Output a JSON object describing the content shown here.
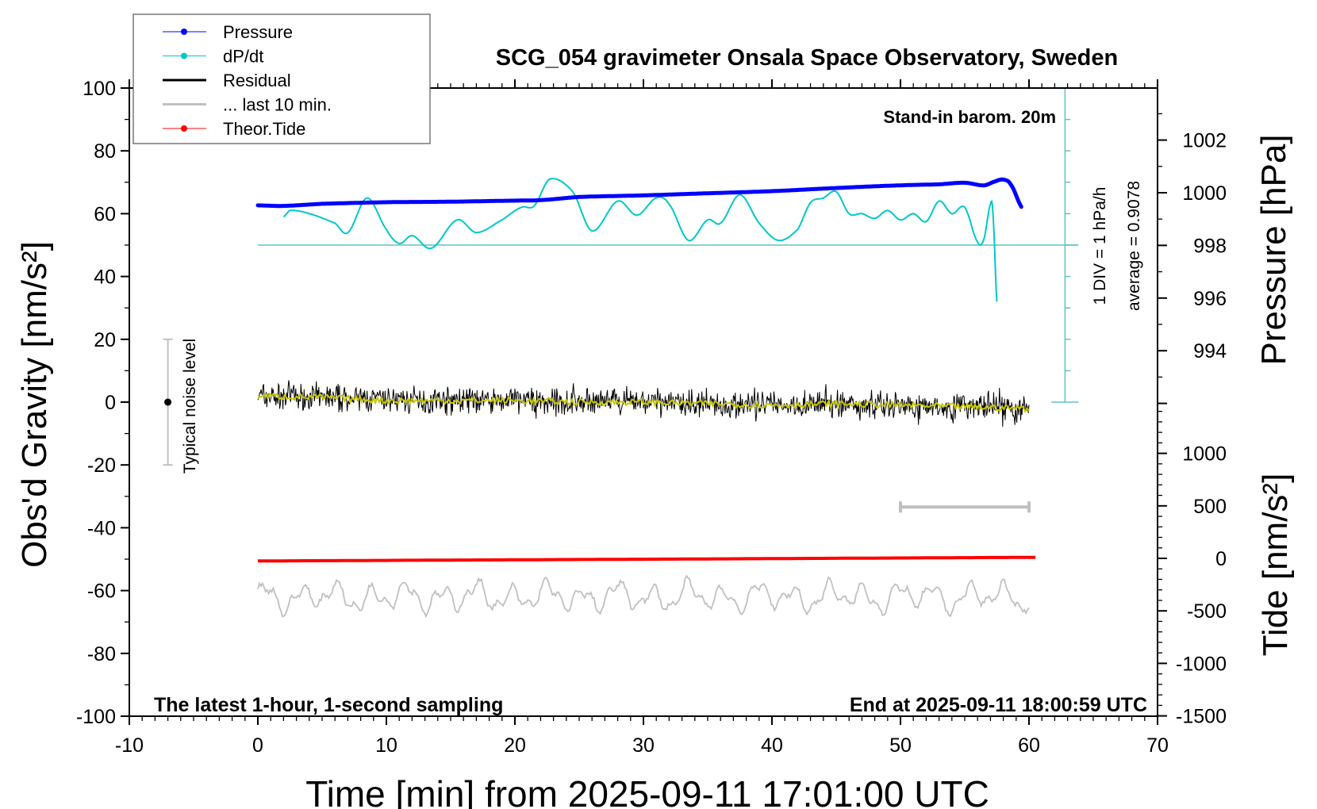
{
  "chart_data": {
    "type": "line",
    "title": "SCG_054 gravimeter Onsala Space Observatory, Sweden",
    "xlabel": "Time [min] from 2025-09-11 17:01:00 UTC",
    "ylabel_left": "Obs'd Gravity [nm/s²]",
    "ylabel_right_pressure": "Pressure [hPa]",
    "ylabel_right_tide": "Tide [nm/s²]",
    "xlim": [
      -10,
      70
    ],
    "ylim_left": [
      -100,
      100
    ],
    "ylim_pressure": [
      992,
      1004
    ],
    "ylim_tide": [
      -1500,
      1500
    ],
    "x_ticks": [
      "-10",
      "0",
      "10",
      "20",
      "30",
      "40",
      "50",
      "60",
      "70"
    ],
    "y_left_ticks": [
      "100",
      "80",
      "60",
      "40",
      "20",
      "0",
      "-20",
      "-40",
      "-60",
      "-80",
      "-100"
    ],
    "pressure_ticks": [
      "1002",
      "1000",
      "998",
      "996",
      "994"
    ],
    "tide_ticks": [
      "1000",
      "500",
      "0",
      "-500",
      "-1000",
      "-1500"
    ],
    "grid": false,
    "legend_placement": "top-left",
    "legend": [
      {
        "label": "Pressure",
        "color": "#0000ff",
        "marker": "dot"
      },
      {
        "label": "dP/dt",
        "color": "#00c8c8",
        "marker": "dot"
      },
      {
        "label": "Residual",
        "color": "#000000",
        "marker": "none"
      },
      {
        "label": "... last 10 min.",
        "color": "#c0c0c0",
        "marker": "none"
      },
      {
        "label": "Theor.Tide",
        "color": "#ff0000",
        "marker": "dot"
      }
    ],
    "annotations": {
      "barometer": "Stand-in barom. 20m",
      "div_scale": "1 DIV = 1 hPa/h",
      "average": "average = 0.9078",
      "noise_label": "Typical noise level",
      "sampling": "The latest 1-hour, 1-second sampling",
      "end_time": "End at 2025-09-11 18:00:59 UTC"
    },
    "noise_level_range": [
      -20,
      20
    ],
    "last10_range_min": [
      50,
      60
    ],
    "series": {
      "pressure_hPa": {
        "x": [
          0,
          2,
          5,
          10,
          15,
          20,
          22,
          25,
          30,
          35,
          40,
          45,
          50,
          53,
          55,
          56.5,
          57.3,
          58,
          58.6,
          59.5
        ],
        "y": [
          999.52,
          999.5,
          999.58,
          999.64,
          999.66,
          999.7,
          999.72,
          999.84,
          999.9,
          999.98,
          1000.06,
          1000.18,
          1000.28,
          1000.32,
          1000.38,
          1000.28,
          1000.42,
          1000.5,
          1000.3,
          999.4
        ]
      },
      "dPdt_hPa_per_h": {
        "x": [
          2,
          2.5,
          4,
          6,
          7,
          8.5,
          10,
          11,
          12,
          13.5,
          15.5,
          17,
          19,
          20.5,
          21.5,
          22.7,
          24.5,
          26,
          28,
          29.5,
          31,
          32,
          33.5,
          35,
          36,
          37.5,
          39,
          40.5,
          42,
          43,
          44,
          45,
          46,
          47,
          48,
          49,
          50,
          51,
          52,
          53,
          54,
          55,
          56,
          56.5,
          57,
          57.2,
          57.5
        ],
        "y": [
          0.9,
          1.1,
          1.0,
          0.7,
          0.4,
          1.5,
          0.5,
          0.05,
          0.3,
          -0.1,
          0.8,
          0.4,
          0.8,
          1.2,
          1.25,
          2.1,
          1.7,
          0.45,
          1.4,
          0.95,
          1.5,
          1.3,
          0.15,
          0.8,
          0.7,
          1.6,
          0.7,
          0.15,
          0.5,
          1.35,
          1.5,
          1.7,
          1.0,
          1.0,
          0.85,
          1.1,
          0.8,
          1.0,
          0.75,
          1.4,
          1.0,
          1.2,
          0.1,
          0.2,
          1.3,
          1.0,
          -1.8
        ]
      },
      "residual_smoothed_nm_s2": {
        "x": [
          0,
          5,
          10,
          15,
          20,
          25,
          30,
          35,
          40,
          45,
          50,
          55,
          60
        ],
        "y": [
          2,
          1.5,
          0.5,
          0.5,
          0.5,
          0,
          0,
          -0.5,
          -1,
          -0.5,
          -1,
          -1.5,
          -2
        ]
      },
      "theor_tide_nm_s2": {
        "x": [
          0,
          30,
          60.5
        ],
        "y": [
          -25,
          -8,
          10
        ]
      }
    },
    "colors": {
      "pressure": "#0000ff",
      "dpdt": "#00c8c8",
      "dpdt_scale": "#5fc4c4",
      "residual": "#000000",
      "residual_smooth": "#c8c800",
      "last10": "#c0c0c0",
      "tide": "#ff0000"
    }
  }
}
